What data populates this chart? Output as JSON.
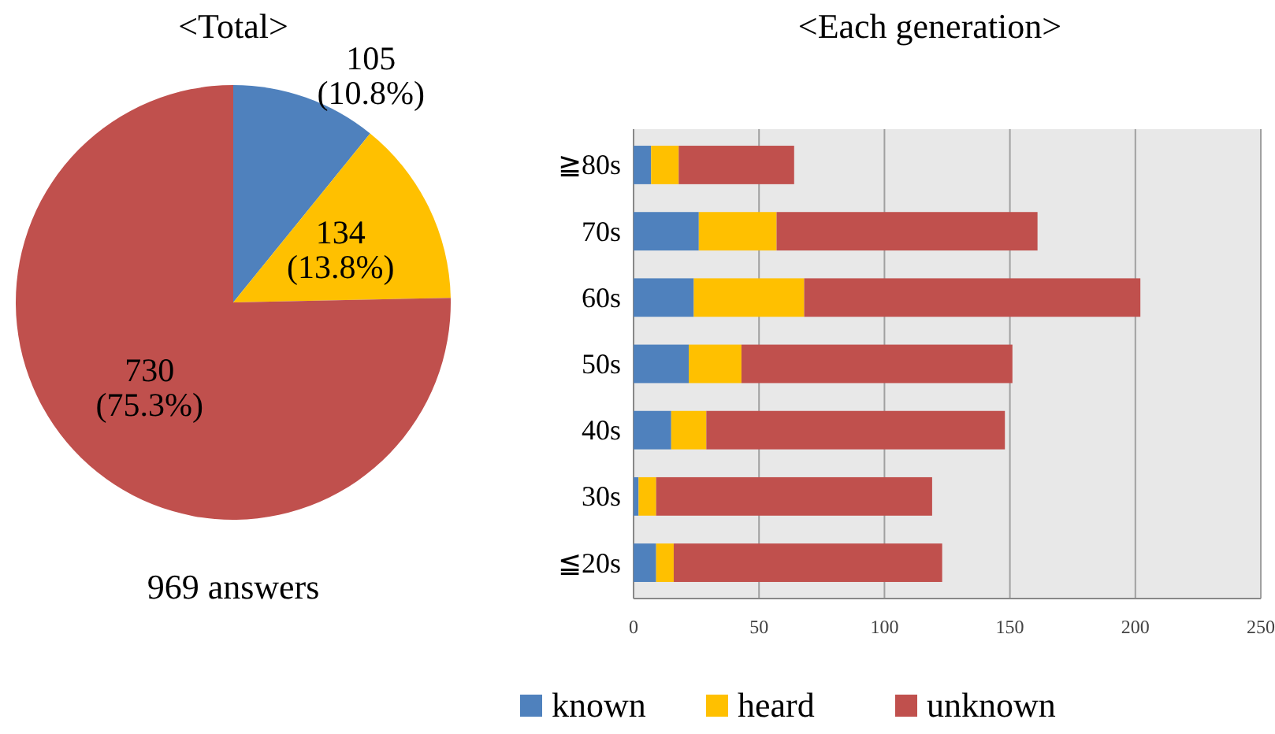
{
  "chart_data": [
    {
      "type": "pie",
      "title": "<Total>",
      "categories": [
        "known",
        "heard",
        "unknown"
      ],
      "values": [
        105,
        134,
        730
      ],
      "colors": [
        "#4f81bd",
        "#ffc000",
        "#c0504d"
      ],
      "value_labels": [
        "105 (10.8%)",
        "134 (13.8%)",
        "730 (75.3%)"
      ],
      "legend": "bottom",
      "annotations": [
        "969 answers"
      ]
    },
    {
      "type": "bar",
      "title": "<Each generation>",
      "orientation": "horizontal",
      "stacked": true,
      "categories": [
        "≧80s",
        "70s",
        "60s",
        "50s",
        "40s",
        "30s",
        "≦20s"
      ],
      "series": [
        {
          "color": "#4f81bd",
          "values": [
            7,
            26,
            24,
            22,
            15,
            2,
            9
          ]
        },
        {
          "color": "#ffc000",
          "values": [
            11,
            31,
            44,
            21,
            14,
            7,
            7
          ]
        },
        {
          "color": "#c0504d",
          "values": [
            46,
            104,
            134,
            108,
            119,
            110,
            107
          ]
        }
      ],
      "xlim": [
        0,
        250
      ],
      "xticks": [
        0,
        50,
        100,
        150,
        200,
        250
      ],
      "grid": "x"
    }
  ]
}
